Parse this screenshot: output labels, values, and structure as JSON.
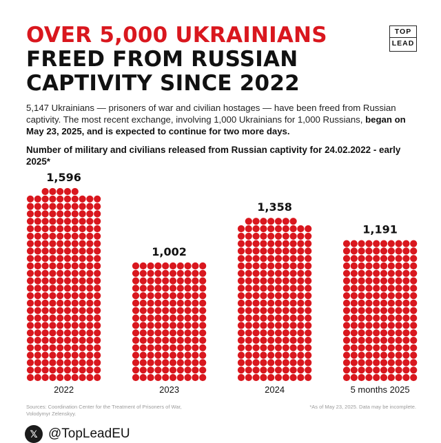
{
  "headline": {
    "line1": "OVER 5,000 UKRAINIANS",
    "line2": "FREED FROM RUSSIAN",
    "line3": "CAPTIVITY SINCE 2022"
  },
  "logo": {
    "line1": "TOP",
    "line2": "LEAD"
  },
  "intro": {
    "normal": "5,147 Ukrainians — prisoners of war and civilian hostages — have been freed from Russian captivity. The most recent exchange, involving 1,000 Ukrainians for 1,000 Russians, ",
    "bold": "began on May 23, 2025, and is expected to continue for two more days."
  },
  "subtitle": "Number of military and civilians released from Russian captivity for 24.02.2022 - early 2025*",
  "chart_data": {
    "type": "bar",
    "style": "dot-matrix",
    "categories": [
      "2022",
      "2023",
      "2024",
      "5 months 2025"
    ],
    "values": [
      1596,
      1002,
      1358,
      1191
    ],
    "value_labels": [
      "1,596",
      "1,002",
      "1,358",
      "1,191"
    ],
    "color": "#d9171e",
    "dots_per_row": 10,
    "title": "Number of military and civilians released from Russian captivity for 24.02.2022 - early 2025*",
    "xlabel": "",
    "ylabel": "",
    "grid": false,
    "legend": "none"
  },
  "sources": "Sources: Coordination Center for the Treatment of Prisoners of War, Volodymyr Zelenskyy.",
  "footnote": "*As of May 23, 2025. Data may be incomplete.",
  "social": {
    "icon": "x-logo-icon",
    "handle": "@TopLeadEU"
  }
}
